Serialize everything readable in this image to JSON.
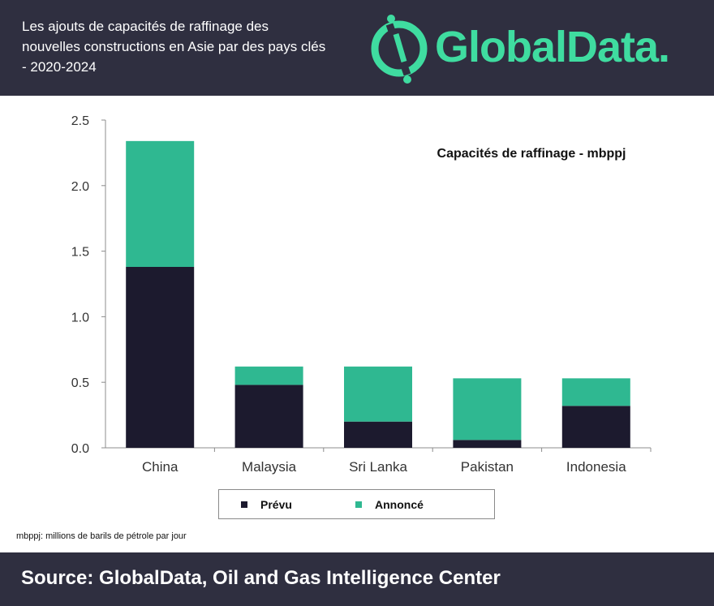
{
  "header": {
    "title": "Les ajouts de capacités de raffinage des nouvelles constructions en Asie par des pays clés - 2020-2024",
    "logo_text": "GlobalData."
  },
  "chart_data": {
    "type": "bar",
    "stacked": true,
    "title": "Capacités de raffinage - mbppj",
    "xlabel": "",
    "ylabel": "",
    "categories": [
      "China",
      "Malaysia",
      "Sri Lanka",
      "Pakistan",
      "Indonesia"
    ],
    "series": [
      {
        "name": "Prévu",
        "color": "#1c1a2e",
        "values": [
          1.38,
          0.48,
          0.2,
          0.06,
          0.32
        ]
      },
      {
        "name": "Annoncé",
        "color": "#2fb891",
        "values": [
          0.96,
          0.14,
          0.42,
          0.47,
          0.21
        ]
      }
    ],
    "ylim": [
      0,
      2.5
    ],
    "yticks": [
      "0.0",
      "0.5",
      "1.0",
      "1.5",
      "2.0",
      "2.5"
    ],
    "grid": false,
    "legend_position": "bottom"
  },
  "footnote": "mbppj: millions de barils de pétrole par jour",
  "footer": {
    "source": "Source: GlobalData, Oil and Gas Intelligence Center"
  }
}
